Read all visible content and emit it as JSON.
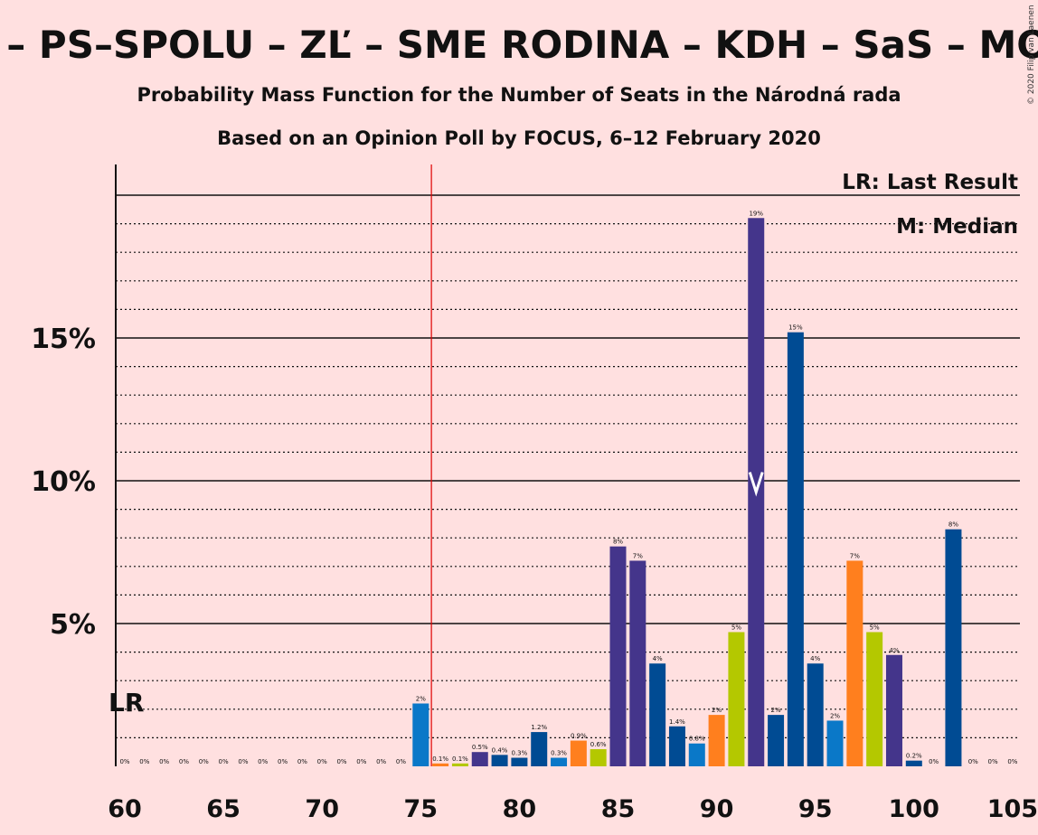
{
  "title": "D – PS–SPOLU – ZĽ – SME RODINA – KDH – SaS – MOS",
  "subtitle1": "Probability Mass Function for the Number of Seats in the Národná rada",
  "subtitle2": "Based on an Opinion Poll by FOCUS, 6–12 February 2020",
  "copyright": "© 2020 Filip van Laenen",
  "legend": {
    "lr": "LR: Last Result",
    "median": "M: Median"
  },
  "lr_label": "LR",
  "colors": {
    "background": "#ffe0e0",
    "purple": "#44358b",
    "blue": "#004b93",
    "lightblue": "#0a78c8",
    "orange": "#ff7f1e",
    "lime": "#b4c800",
    "lr_line": "#e00000"
  },
  "chart_data": {
    "type": "bar",
    "xlim": [
      60,
      105
    ],
    "ylim": [
      0,
      21
    ],
    "x_ticks": [
      60,
      65,
      70,
      75,
      80,
      85,
      90,
      95,
      100,
      105
    ],
    "x_tick_labels": [
      "60",
      "65",
      "70",
      "75",
      "80",
      "85",
      "90",
      "95",
      "100",
      "105"
    ],
    "y_ticks": [
      5,
      10,
      15
    ],
    "y_tick_labels": [
      "5%",
      "10%",
      "15%"
    ],
    "grid": "dotted every 1%, solid every 5%",
    "last_result": 76,
    "median": 92,
    "bars": [
      {
        "x": 60,
        "value": 0,
        "label": "0%",
        "color": "blue"
      },
      {
        "x": 61,
        "value": 0,
        "label": "0%",
        "color": "blue"
      },
      {
        "x": 62,
        "value": 0,
        "label": "0%",
        "color": "blue"
      },
      {
        "x": 63,
        "value": 0,
        "label": "0%",
        "color": "blue"
      },
      {
        "x": 64,
        "value": 0,
        "label": "0%",
        "color": "blue"
      },
      {
        "x": 65,
        "value": 0,
        "label": "0%",
        "color": "blue"
      },
      {
        "x": 66,
        "value": 0,
        "label": "0%",
        "color": "blue"
      },
      {
        "x": 67,
        "value": 0,
        "label": "0%",
        "color": "blue"
      },
      {
        "x": 68,
        "value": 0,
        "label": "0%",
        "color": "blue"
      },
      {
        "x": 69,
        "value": 0,
        "label": "0%",
        "color": "blue"
      },
      {
        "x": 70,
        "value": 0,
        "label": "0%",
        "color": "blue"
      },
      {
        "x": 71,
        "value": 0,
        "label": "0%",
        "color": "blue"
      },
      {
        "x": 72,
        "value": 0,
        "label": "0%",
        "color": "blue"
      },
      {
        "x": 73,
        "value": 0,
        "label": "0%",
        "color": "blue"
      },
      {
        "x": 74,
        "value": 0,
        "label": "0%",
        "color": "blue"
      },
      {
        "x": 75,
        "value": 2.2,
        "label": "2%",
        "color": "lightblue"
      },
      {
        "x": 76,
        "value": 0.1,
        "label": "0.1%",
        "color": "orange"
      },
      {
        "x": 77,
        "value": 0.1,
        "label": "0.1%",
        "color": "lime"
      },
      {
        "x": 78,
        "value": 0.5,
        "label": "0.5%",
        "color": "purple"
      },
      {
        "x": 79,
        "value": 0.4,
        "label": "0.4%",
        "color": "blue"
      },
      {
        "x": 80,
        "value": 0.3,
        "label": "0.3%",
        "color": "blue"
      },
      {
        "x": 81,
        "value": 1.2,
        "label": "1.2%",
        "color": "blue"
      },
      {
        "x": 82,
        "value": 0.3,
        "label": "0.3%",
        "color": "lightblue"
      },
      {
        "x": 83,
        "value": 0.9,
        "label": "0.9%",
        "color": "orange"
      },
      {
        "x": 84,
        "value": 0.6,
        "label": "0.6%",
        "color": "lime"
      },
      {
        "x": 85,
        "value": 7.7,
        "label": "8%",
        "color": "purple"
      },
      {
        "x": 86,
        "value": 7.2,
        "label": "7%",
        "color": "purple"
      },
      {
        "x": 87,
        "value": 3.6,
        "label": "4%",
        "color": "blue"
      },
      {
        "x": 88,
        "value": 1.4,
        "label": "1.4%",
        "color": "blue"
      },
      {
        "x": 89,
        "value": 0.8,
        "label": "0.8%",
        "color": "lightblue"
      },
      {
        "x": 90,
        "value": 1.8,
        "label": "2%",
        "color": "orange"
      },
      {
        "x": 91,
        "value": 4.7,
        "label": "5%",
        "color": "lime"
      },
      {
        "x": 92,
        "value": 19.2,
        "label": "19%",
        "color": "purple"
      },
      {
        "x": 93,
        "value": 1.8,
        "label": "2%",
        "color": "blue"
      },
      {
        "x": 94,
        "value": 15.2,
        "label": "15%",
        "color": "blue"
      },
      {
        "x": 95,
        "value": 3.6,
        "label": "4%",
        "color": "blue"
      },
      {
        "x": 96,
        "value": 1.6,
        "label": "2%",
        "color": "lightblue"
      },
      {
        "x": 97,
        "value": 7.2,
        "label": "7%",
        "color": "orange"
      },
      {
        "x": 98,
        "value": 4.7,
        "label": "5%",
        "color": "lime"
      },
      {
        "x": 99,
        "value": 3.9,
        "label": "4%",
        "color": "purple"
      },
      {
        "x": 100,
        "value": 0.2,
        "label": "0.2%",
        "color": "blue"
      },
      {
        "x": 101,
        "value": 0,
        "label": "0%",
        "color": "blue"
      },
      {
        "x": 102,
        "value": 8.3,
        "label": "8%",
        "color": "blue"
      },
      {
        "x": 103,
        "value": 0,
        "label": "0%",
        "color": "blue"
      },
      {
        "x": 104,
        "value": 0,
        "label": "0%",
        "color": "blue"
      },
      {
        "x": 105,
        "value": 0,
        "label": "0%",
        "color": "blue"
      }
    ]
  }
}
